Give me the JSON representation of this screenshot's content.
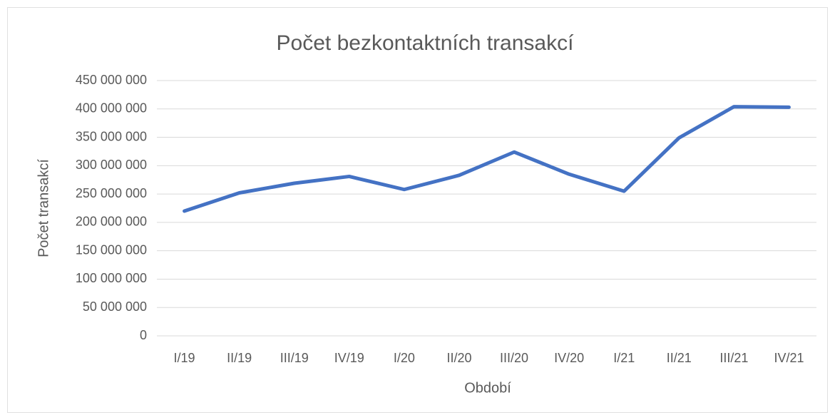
{
  "chart_data": {
    "type": "line",
    "title": "Počet bezkontaktních transakcí",
    "x_label": "Období",
    "y_label": "Počet transakcí",
    "categories": [
      "I/19",
      "II/19",
      "III/19",
      "IV/19",
      "I/20",
      "II/20",
      "III/20",
      "IV/20",
      "I/21",
      "II/21",
      "III/21",
      "IV/21"
    ],
    "series": [
      {
        "name": "Počet transakcí",
        "color": "#4472c4",
        "values": [
          220000000,
          252000000,
          269000000,
          281000000,
          258000000,
          283000000,
          324000000,
          285000000,
          255000000,
          349000000,
          404000000,
          403000000
        ]
      }
    ],
    "ylim": [
      0,
      450000000
    ],
    "yticks": [
      0,
      {
        "value": 50000000,
        "label": "50 000 000"
      },
      {
        "value": 100000000,
        "label": "100 000 000"
      },
      {
        "value": 150000000,
        "label": "150 000 000"
      },
      {
        "value": 200000000,
        "label": "200 000 000"
      },
      {
        "value": 250000000,
        "label": "250 000 000"
      },
      {
        "value": 300000000,
        "label": "300 000 000"
      },
      {
        "value": 350000000,
        "label": "350 000 000"
      },
      {
        "value": 400000000,
        "label": "400 000 000"
      },
      {
        "value": 450000000,
        "label": "450 000 000"
      }
    ],
    "grid": true
  }
}
